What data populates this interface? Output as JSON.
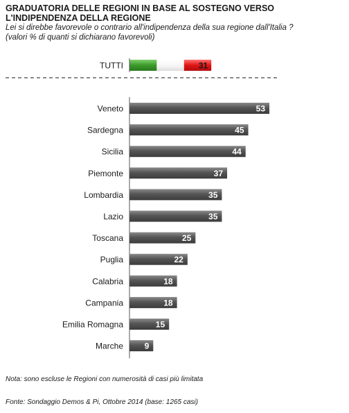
{
  "header": {
    "title_line1": "GRADUATORIA DELLE REGIONI IN BASE AL SOSTEGNO VERSO",
    "title_line2": "L'INDIPENDENZA  DELLA REGIONE",
    "subtitle_line1": "Lei si direbbe favorevole o contrario all'indipendenza della sua regione dall'Italia ?",
    "subtitle_line2": "(valori % di quanti si dichiarano favorevoli)"
  },
  "chart_data": {
    "type": "bar",
    "orientation": "horizontal",
    "total": {
      "label": "TUTTI",
      "value": 31
    },
    "categories": [
      "Veneto",
      "Sardegna",
      "Sicilia",
      "Piemonte",
      "Lombardia",
      "Lazio",
      "Toscana",
      "Puglia",
      "Calabria",
      "Campania",
      "Emilia Romagna",
      "Marche"
    ],
    "values": [
      53,
      45,
      44,
      37,
      35,
      35,
      25,
      22,
      18,
      18,
      15,
      9
    ],
    "value_labels": [
      "53",
      "45",
      "44",
      "37",
      "35",
      "35",
      "25",
      "22",
      "18",
      "18",
      "15",
      "9"
    ],
    "total_value_label": "31",
    "xlim": [
      0,
      53
    ],
    "grid": false,
    "colors": {
      "bar": "#4f4f4f",
      "bar_highlight": "#8a8a8a",
      "flag_green": "#3a9a2a",
      "flag_white": "#ffffff",
      "flag_red": "#e01414",
      "axis": "#555555",
      "separator": "#444444"
    }
  },
  "footer": {
    "note": "Nota: sono escluse le Regioni con numerosità di casi più limitata",
    "source": "Fonte: Sondaggio Demos & Pi, Ottobre 2014 (base: 1265 casi)"
  }
}
